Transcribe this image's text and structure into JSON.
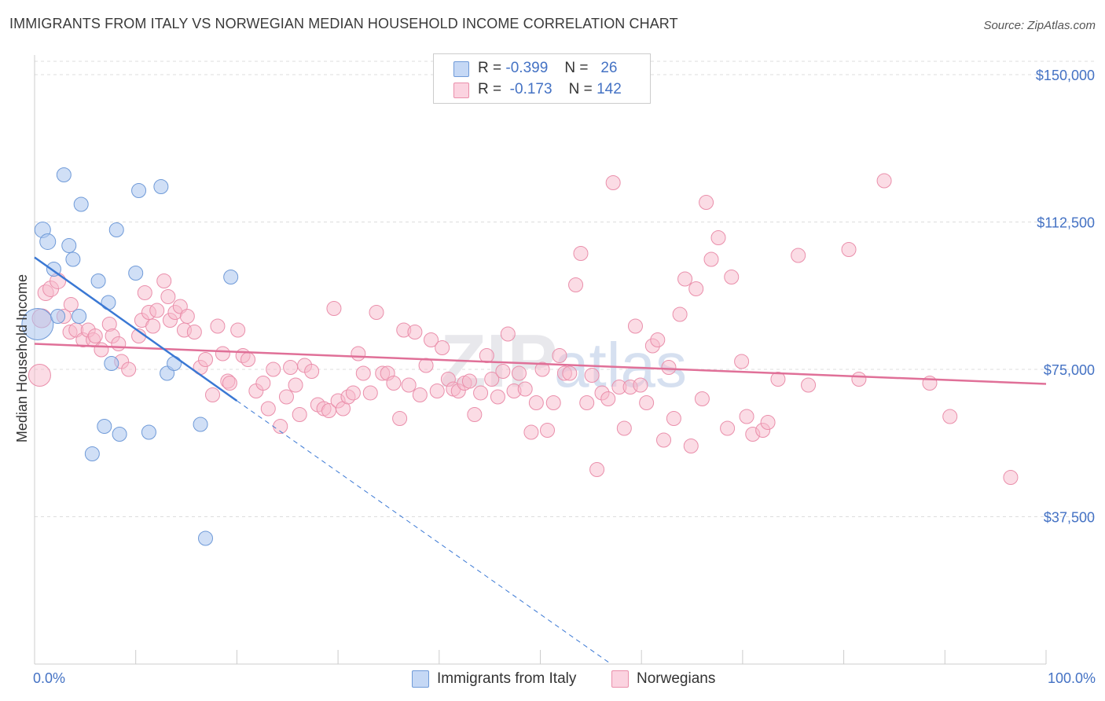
{
  "header": {
    "title": "IMMIGRANTS FROM ITALY VS NORWEGIAN MEDIAN HOUSEHOLD INCOME CORRELATION CHART",
    "source": "Source: ZipAtlas.com"
  },
  "legend": {
    "rows": [
      {
        "r_label": "R =",
        "r_value": "-0.399",
        "n_label": "N =",
        "n_value": "26"
      },
      {
        "r_label": "R =",
        "r_value": "-0.173",
        "n_label": "N =",
        "n_value": "142"
      }
    ]
  },
  "bottom_legend": {
    "items": [
      {
        "label": "Immigrants from Italy"
      },
      {
        "label": "Norwegians"
      }
    ]
  },
  "colors": {
    "italy_fill": "#a9c4ef",
    "italy_stroke": "#6f9ad8",
    "italy_line": "#3a78d4",
    "norw_fill": "#f7b9cc",
    "norw_stroke": "#ea8fab",
    "norw_line": "#e07098",
    "grid": "#dddddd",
    "tick_label": "#4472c4"
  },
  "chart_data": {
    "type": "scatter",
    "title": "IMMIGRANTS FROM ITALY VS NORWEGIAN MEDIAN HOUSEHOLD INCOME CORRELATION CHART",
    "xlabel": "",
    "ylabel": "Median Household Income",
    "xlim": [
      0,
      100
    ],
    "ylim": [
      0,
      155000
    ],
    "x_tick_labels": [
      "0.0%",
      "100.0%"
    ],
    "y_ticks": [
      37500,
      75000,
      112500,
      150000
    ],
    "y_tick_labels": [
      "$37,500",
      "$75,000",
      "$112,500",
      "$150,000"
    ],
    "grid": true,
    "legend_position": "top-center",
    "series": [
      {
        "name": "Immigrants from Italy",
        "r": -0.399,
        "n": 26,
        "trend": {
          "x0": 0,
          "y0": 103500,
          "x1": 20,
          "y1": 67000,
          "dashed_to_x": 57,
          "dashed_to_y": 0
        },
        "points": [
          [
            0.3,
            86500,
            20
          ],
          [
            0.8,
            110500,
            10
          ],
          [
            1.3,
            107500,
            10
          ],
          [
            1.9,
            100500,
            9
          ],
          [
            2.3,
            88500,
            9
          ],
          [
            2.9,
            124500,
            9
          ],
          [
            3.4,
            106500,
            9
          ],
          [
            3.8,
            103000,
            9
          ],
          [
            4.6,
            117000,
            9
          ],
          [
            4.4,
            88500,
            9
          ],
          [
            5.7,
            53500,
            9
          ],
          [
            6.3,
            97500,
            9
          ],
          [
            7.3,
            92000,
            9
          ],
          [
            6.9,
            60500,
            9
          ],
          [
            7.6,
            76500,
            9
          ],
          [
            8.1,
            110500,
            9
          ],
          [
            8.4,
            58500,
            9
          ],
          [
            10.0,
            99500,
            9
          ],
          [
            10.3,
            120500,
            9
          ],
          [
            11.3,
            59000,
            9
          ],
          [
            12.5,
            121500,
            9
          ],
          [
            13.1,
            74000,
            9
          ],
          [
            13.8,
            76500,
            9
          ],
          [
            16.4,
            61000,
            9
          ],
          [
            16.9,
            32000,
            9
          ],
          [
            19.4,
            98500,
            9
          ]
        ]
      },
      {
        "name": "Norwegians",
        "r": -0.173,
        "n": 142,
        "trend": {
          "x0": 0,
          "y0": 81500,
          "x1": 100,
          "y1": 71300
        },
        "points": [
          [
            0.5,
            73500,
            14
          ],
          [
            0.7,
            88000,
            12
          ],
          [
            1.1,
            94500,
            10
          ],
          [
            1.6,
            95500,
            10
          ],
          [
            2.3,
            97500,
            10
          ],
          [
            2.9,
            88500,
            9
          ],
          [
            3.5,
            84500,
            9
          ],
          [
            3.6,
            91500,
            9
          ],
          [
            4.1,
            85000,
            9
          ],
          [
            4.8,
            82500,
            9
          ],
          [
            5.3,
            85000,
            9
          ],
          [
            5.8,
            82500,
            9
          ],
          [
            6.0,
            83500,
            9
          ],
          [
            6.6,
            80000,
            9
          ],
          [
            7.4,
            86500,
            9
          ],
          [
            7.7,
            83500,
            9
          ],
          [
            8.3,
            81500,
            9
          ],
          [
            8.6,
            77000,
            9
          ],
          [
            9.3,
            75000,
            9
          ],
          [
            10.3,
            83500,
            9
          ],
          [
            10.6,
            87500,
            9
          ],
          [
            10.9,
            94500,
            9
          ],
          [
            11.3,
            89500,
            9
          ],
          [
            11.7,
            86000,
            9
          ],
          [
            12.1,
            90000,
            9
          ],
          [
            12.8,
            97500,
            9
          ],
          [
            13.2,
            93500,
            9
          ],
          [
            13.4,
            87500,
            9
          ],
          [
            13.9,
            89500,
            9
          ],
          [
            14.4,
            91000,
            9
          ],
          [
            14.8,
            85000,
            9
          ],
          [
            15.1,
            88500,
            9
          ],
          [
            15.8,
            84500,
            9
          ],
          [
            16.4,
            75500,
            9
          ],
          [
            16.9,
            77500,
            9
          ],
          [
            17.6,
            68500,
            9
          ],
          [
            18.1,
            86000,
            9
          ],
          [
            18.6,
            79000,
            9
          ],
          [
            19.1,
            72000,
            9
          ],
          [
            19.3,
            71500,
            9
          ],
          [
            20.1,
            85000,
            9
          ],
          [
            20.6,
            78500,
            9
          ],
          [
            21.1,
            77500,
            9
          ],
          [
            21.9,
            69500,
            9
          ],
          [
            22.6,
            71500,
            9
          ],
          [
            23.1,
            65000,
            9
          ],
          [
            23.6,
            75000,
            9
          ],
          [
            24.3,
            60500,
            9
          ],
          [
            24.9,
            68000,
            9
          ],
          [
            25.3,
            75500,
            9
          ],
          [
            25.8,
            71000,
            9
          ],
          [
            26.2,
            63500,
            9
          ],
          [
            26.7,
            76000,
            9
          ],
          [
            27.4,
            74500,
            9
          ],
          [
            28.0,
            66000,
            9
          ],
          [
            28.6,
            65000,
            9
          ],
          [
            29.1,
            64500,
            9
          ],
          [
            29.6,
            90500,
            9
          ],
          [
            30.0,
            67000,
            9
          ],
          [
            30.5,
            65000,
            9
          ],
          [
            31.0,
            68000,
            9
          ],
          [
            31.5,
            69000,
            9
          ],
          [
            32.0,
            79000,
            9
          ],
          [
            32.5,
            74000,
            9
          ],
          [
            33.2,
            69000,
            9
          ],
          [
            33.8,
            89500,
            9
          ],
          [
            34.4,
            74000,
            9
          ],
          [
            34.9,
            74000,
            9
          ],
          [
            35.5,
            71500,
            9
          ],
          [
            36.1,
            62500,
            9
          ],
          [
            36.5,
            85000,
            9
          ],
          [
            37.0,
            71000,
            9
          ],
          [
            37.6,
            84500,
            9
          ],
          [
            38.1,
            68500,
            9
          ],
          [
            38.7,
            76000,
            9
          ],
          [
            39.2,
            82500,
            9
          ],
          [
            39.8,
            69500,
            9
          ],
          [
            40.3,
            80500,
            9
          ],
          [
            40.9,
            72500,
            9
          ],
          [
            41.4,
            70000,
            9
          ],
          [
            41.9,
            69500,
            9
          ],
          [
            42.5,
            71500,
            9
          ],
          [
            43.0,
            72000,
            9
          ],
          [
            43.5,
            63500,
            9
          ],
          [
            44.1,
            69000,
            9
          ],
          [
            44.7,
            78500,
            9
          ],
          [
            45.2,
            72500,
            9
          ],
          [
            45.8,
            68000,
            9
          ],
          [
            46.3,
            74500,
            9
          ],
          [
            46.8,
            84000,
            9
          ],
          [
            47.4,
            69500,
            9
          ],
          [
            47.9,
            74000,
            9
          ],
          [
            48.5,
            70000,
            9
          ],
          [
            49.1,
            59000,
            9
          ],
          [
            49.6,
            66500,
            9
          ],
          [
            50.2,
            75000,
            9
          ],
          [
            50.7,
            59500,
            9
          ],
          [
            51.3,
            66500,
            9
          ],
          [
            51.9,
            78500,
            9
          ],
          [
            52.4,
            74000,
            9
          ],
          [
            52.9,
            74000,
            9
          ],
          [
            53.5,
            96500,
            9
          ],
          [
            54.0,
            104500,
            9
          ],
          [
            54.6,
            66500,
            9
          ],
          [
            55.1,
            73500,
            9
          ],
          [
            55.6,
            49500,
            9
          ],
          [
            56.1,
            69000,
            9
          ],
          [
            56.7,
            67500,
            9
          ],
          [
            57.2,
            122500,
            9
          ],
          [
            57.8,
            70500,
            9
          ],
          [
            58.3,
            60000,
            9
          ],
          [
            58.9,
            70500,
            9
          ],
          [
            59.4,
            86000,
            9
          ],
          [
            59.9,
            71000,
            9
          ],
          [
            60.5,
            66500,
            9
          ],
          [
            61.1,
            81000,
            9
          ],
          [
            61.6,
            82500,
            9
          ],
          [
            62.2,
            57000,
            9
          ],
          [
            62.7,
            75500,
            9
          ],
          [
            63.2,
            62500,
            9
          ],
          [
            63.8,
            89000,
            9
          ],
          [
            64.3,
            98000,
            9
          ],
          [
            64.9,
            55500,
            9
          ],
          [
            65.4,
            95500,
            9
          ],
          [
            66.0,
            67500,
            9
          ],
          [
            66.4,
            117500,
            9
          ],
          [
            66.9,
            103000,
            9
          ],
          [
            67.6,
            108500,
            9
          ],
          [
            68.5,
            60000,
            9
          ],
          [
            68.9,
            98500,
            9
          ],
          [
            69.9,
            77000,
            9
          ],
          [
            70.4,
            63000,
            9
          ],
          [
            71.0,
            58500,
            9
          ],
          [
            72.0,
            59500,
            9
          ],
          [
            72.5,
            61500,
            9
          ],
          [
            73.5,
            72500,
            9
          ],
          [
            75.5,
            104000,
            9
          ],
          [
            76.5,
            71000,
            9
          ],
          [
            80.5,
            105500,
            9
          ],
          [
            81.5,
            72500,
            9
          ],
          [
            84.0,
            123000,
            9
          ],
          [
            88.5,
            71500,
            9
          ],
          [
            90.5,
            63000,
            9
          ],
          [
            96.5,
            47500,
            9
          ]
        ]
      }
    ]
  }
}
